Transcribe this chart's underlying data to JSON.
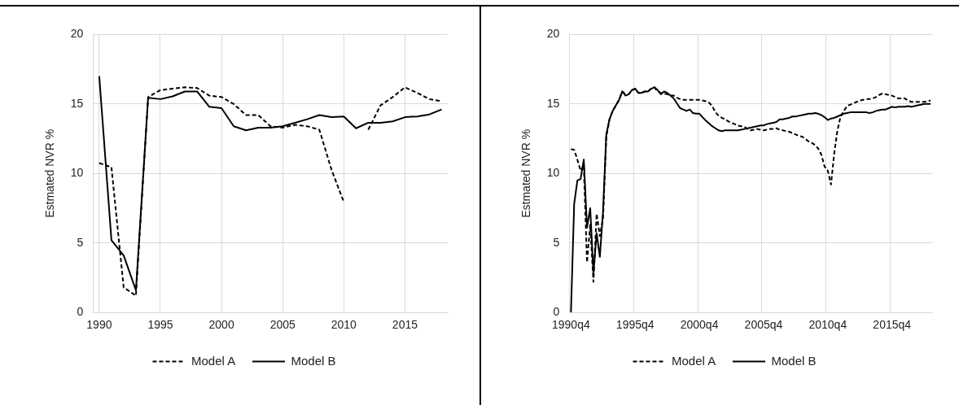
{
  "chart_data": [
    {
      "type": "line",
      "ylabel": "Estmated NVR %",
      "x": [
        1990,
        1991,
        1992,
        1993,
        1994,
        1995,
        1996,
        1997,
        1998,
        1999,
        2000,
        2001,
        2002,
        2003,
        2004,
        2005,
        2006,
        2007,
        2008,
        2009,
        2010,
        2011,
        2012,
        2013,
        2014,
        2015,
        2016,
        2017,
        2018
      ],
      "xlim": [
        1989.5,
        2018.5
      ],
      "xticks": [
        1990,
        1995,
        2000,
        2005,
        2010,
        2015
      ],
      "ylim": [
        0,
        20
      ],
      "yticks": [
        0,
        5,
        10,
        15,
        20
      ],
      "grid": true,
      "legend": "bottom",
      "series": [
        {
          "name": "Model A",
          "color": "#000000",
          "line_style": "dashed",
          "values": [
            10.75,
            10.45,
            1.8,
            1.2,
            15.5,
            16.0,
            16.1,
            16.2,
            16.15,
            15.6,
            15.5,
            15.0,
            14.2,
            14.2,
            13.4,
            13.3,
            13.5,
            13.4,
            13.15,
            10.25,
            7.95,
            null,
            13.15,
            14.9,
            15.5,
            16.2,
            15.8,
            15.35,
            15.2
          ]
        },
        {
          "name": "Model B",
          "color": "#000000",
          "line_style": "solid",
          "values": [
            17.0,
            5.2,
            4.1,
            1.6,
            15.45,
            15.35,
            15.55,
            15.9,
            15.9,
            14.8,
            14.7,
            13.4,
            13.1,
            13.3,
            13.3,
            13.4,
            13.65,
            13.9,
            14.2,
            14.05,
            14.1,
            13.25,
            13.65,
            13.65,
            13.75,
            14.05,
            14.1,
            14.25,
            14.6
          ]
        }
      ]
    },
    {
      "type": "line",
      "ylabel": "Estmated NVR %",
      "categories": [
        "1990q4",
        null,
        null,
        null,
        null,
        null,
        null,
        null,
        null,
        null,
        null,
        null,
        null,
        null,
        null,
        null,
        null,
        null,
        null,
        null,
        "1995q4",
        null,
        null,
        null,
        null,
        null,
        null,
        null,
        null,
        null,
        null,
        null,
        null,
        null,
        null,
        null,
        null,
        null,
        null,
        null,
        "2000q4",
        null,
        null,
        null,
        null,
        null,
        null,
        null,
        null,
        null,
        null,
        null,
        null,
        null,
        null,
        null,
        null,
        null,
        null,
        null,
        "2005q4",
        null,
        null,
        null,
        null,
        null,
        null,
        null,
        null,
        null,
        null,
        null,
        null,
        null,
        null,
        null,
        null,
        null,
        null,
        null,
        "2010q4",
        null,
        null,
        null,
        null,
        null,
        null,
        null,
        null,
        null,
        null,
        null,
        null,
        null,
        null,
        null,
        null,
        null,
        null,
        null,
        "2015q4",
        null,
        null,
        null,
        null,
        null,
        null,
        null,
        null,
        null,
        null,
        null,
        null
      ],
      "ylim": [
        0,
        20
      ],
      "yticks": [
        0,
        5,
        10,
        15,
        20
      ],
      "grid": true,
      "legend": "bottom",
      "series": [
        {
          "name": "Model A",
          "color": "#000000",
          "line_style": "dashed",
          "values": [
            11.75,
            11.7,
            11.0,
            10.2,
            10.6,
            3.6,
            6.3,
            2.2,
            7.1,
            5.5,
            6.8,
            12.6,
            13.9,
            14.5,
            14.9,
            15.3,
            15.9,
            15.7,
            15.7,
            16.0,
            16.1,
            15.8,
            15.8,
            15.9,
            15.9,
            16.1,
            16.2,
            15.9,
            15.8,
            15.75,
            15.7,
            15.6,
            15.6,
            15.45,
            15.35,
            15.3,
            15.3,
            15.3,
            15.3,
            15.3,
            15.3,
            15.25,
            15.2,
            15.1,
            14.85,
            14.4,
            14.15,
            14.0,
            13.9,
            13.75,
            13.65,
            13.55,
            13.45,
            13.4,
            13.35,
            13.2,
            13.1,
            13.15,
            13.2,
            13.15,
            13.1,
            13.15,
            13.2,
            13.2,
            13.25,
            13.15,
            13.1,
            13.05,
            13.0,
            12.9,
            12.8,
            12.7,
            12.65,
            12.5,
            12.3,
            12.2,
            12.05,
            11.8,
            11.35,
            10.5,
            10.2,
            9.2,
            11.45,
            13.1,
            14.1,
            14.5,
            14.85,
            14.95,
            15.05,
            15.15,
            15.25,
            15.3,
            15.35,
            15.35,
            15.4,
            15.5,
            15.65,
            15.75,
            15.7,
            15.65,
            15.6,
            15.5,
            15.4,
            15.4,
            15.4,
            15.25,
            15.15,
            15.15,
            15.15,
            15.15,
            15.15,
            15.2,
            15.25
          ]
        },
        {
          "name": "Model B",
          "color": "#000000",
          "line_style": "solid",
          "values": [
            0,
            7.8,
            9.5,
            9.6,
            11.0,
            6.1,
            7.5,
            2.8,
            5.7,
            4.0,
            7.3,
            12.8,
            13.9,
            14.5,
            14.9,
            15.3,
            15.9,
            15.6,
            15.7,
            16.0,
            16.1,
            15.8,
            15.8,
            15.9,
            15.9,
            16.1,
            16.2,
            16.0,
            15.7,
            15.9,
            15.8,
            15.6,
            15.4,
            15.05,
            14.7,
            14.6,
            14.5,
            14.6,
            14.35,
            14.3,
            14.3,
            14.05,
            13.8,
            13.6,
            13.4,
            13.25,
            13.1,
            13.05,
            13.1,
            13.1,
            13.1,
            13.1,
            13.1,
            13.15,
            13.2,
            13.25,
            13.3,
            13.35,
            13.4,
            13.45,
            13.45,
            13.55,
            13.6,
            13.65,
            13.7,
            13.9,
            13.9,
            13.95,
            14.0,
            14.1,
            14.1,
            14.15,
            14.2,
            14.25,
            14.3,
            14.3,
            14.35,
            14.3,
            14.2,
            14.05,
            13.85,
            13.95,
            14.0,
            14.1,
            14.2,
            14.3,
            14.35,
            14.4,
            14.4,
            14.4,
            14.4,
            14.4,
            14.4,
            14.35,
            14.4,
            14.5,
            14.55,
            14.6,
            14.6,
            14.7,
            14.8,
            14.75,
            14.8,
            14.8,
            14.8,
            14.85,
            14.8,
            14.85,
            14.9,
            14.95,
            15.0,
            15.0,
            15.0
          ]
        }
      ]
    }
  ]
}
